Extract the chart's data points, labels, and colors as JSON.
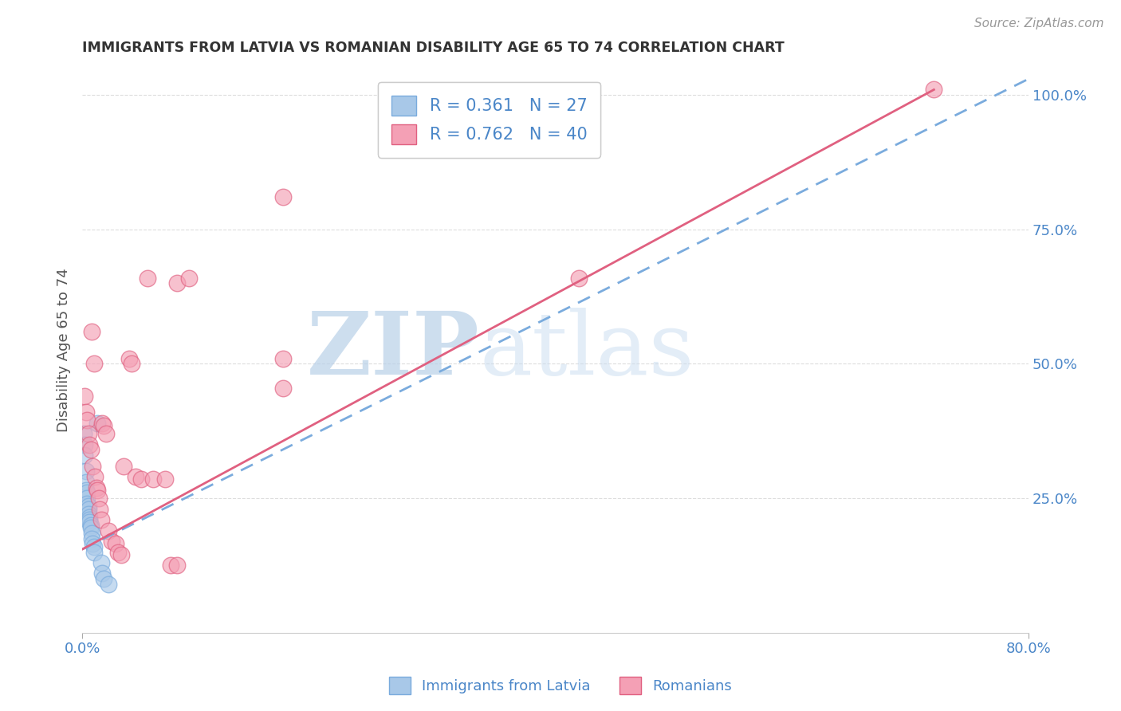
{
  "title": "IMMIGRANTS FROM LATVIA VS ROMANIAN DISABILITY AGE 65 TO 74 CORRELATION CHART",
  "source": "Source: ZipAtlas.com",
  "ylabel": "Disability Age 65 to 74",
  "xlim": [
    0.0,
    0.8
  ],
  "ylim": [
    0.0,
    1.05
  ],
  "legend_entries": [
    {
      "label": "R = 0.361   N = 27",
      "color": "#a8c4e0"
    },
    {
      "label": "R = 0.762   N = 40",
      "color": "#f4a0b0"
    }
  ],
  "legend_bottom": [
    "Immigrants from Latvia",
    "Romanians"
  ],
  "watermark_zip": "ZIP",
  "watermark_atlas": "atlas",
  "latvia_scatter": [
    [
      0.001,
      0.37
    ],
    [
      0.002,
      0.35
    ],
    [
      0.002,
      0.33
    ],
    [
      0.003,
      0.3
    ],
    [
      0.003,
      0.28
    ],
    [
      0.003,
      0.265
    ],
    [
      0.004,
      0.26
    ],
    [
      0.004,
      0.25
    ],
    [
      0.004,
      0.24
    ],
    [
      0.005,
      0.235
    ],
    [
      0.005,
      0.23
    ],
    [
      0.005,
      0.22
    ],
    [
      0.006,
      0.215
    ],
    [
      0.006,
      0.21
    ],
    [
      0.006,
      0.205
    ],
    [
      0.007,
      0.2
    ],
    [
      0.007,
      0.195
    ],
    [
      0.008,
      0.185
    ],
    [
      0.008,
      0.175
    ],
    [
      0.009,
      0.165
    ],
    [
      0.01,
      0.16
    ],
    [
      0.01,
      0.15
    ],
    [
      0.013,
      0.39
    ],
    [
      0.016,
      0.13
    ],
    [
      0.017,
      0.11
    ],
    [
      0.018,
      0.1
    ],
    [
      0.022,
      0.09
    ]
  ],
  "romanian_scatter": [
    [
      0.002,
      0.44
    ],
    [
      0.003,
      0.41
    ],
    [
      0.004,
      0.395
    ],
    [
      0.005,
      0.37
    ],
    [
      0.006,
      0.35
    ],
    [
      0.007,
      0.34
    ],
    [
      0.008,
      0.56
    ],
    [
      0.009,
      0.31
    ],
    [
      0.01,
      0.5
    ],
    [
      0.011,
      0.29
    ],
    [
      0.012,
      0.27
    ],
    [
      0.013,
      0.265
    ],
    [
      0.014,
      0.25
    ],
    [
      0.015,
      0.23
    ],
    [
      0.016,
      0.21
    ],
    [
      0.017,
      0.39
    ],
    [
      0.018,
      0.385
    ],
    [
      0.02,
      0.37
    ],
    [
      0.022,
      0.19
    ],
    [
      0.025,
      0.17
    ],
    [
      0.028,
      0.165
    ],
    [
      0.03,
      0.15
    ],
    [
      0.033,
      0.145
    ],
    [
      0.035,
      0.31
    ],
    [
      0.04,
      0.51
    ],
    [
      0.042,
      0.5
    ],
    [
      0.045,
      0.29
    ],
    [
      0.05,
      0.285
    ],
    [
      0.055,
      0.66
    ],
    [
      0.06,
      0.285
    ],
    [
      0.07,
      0.285
    ],
    [
      0.075,
      0.125
    ],
    [
      0.08,
      0.65
    ],
    [
      0.08,
      0.125
    ],
    [
      0.09,
      0.66
    ],
    [
      0.17,
      0.81
    ],
    [
      0.17,
      0.51
    ],
    [
      0.17,
      0.455
    ],
    [
      0.42,
      0.66
    ],
    [
      0.72,
      1.01
    ]
  ],
  "latvia_line": [
    [
      0.0,
      0.155
    ],
    [
      0.8,
      1.03
    ]
  ],
  "romanian_line": [
    [
      0.0,
      0.155
    ],
    [
      0.72,
      1.01
    ]
  ],
  "latvia_line_color": "#7aabdd",
  "romanian_line_color": "#e06080",
  "scatter_blue": "#a8c8e8",
  "scatter_pink": "#f4a0b5",
  "grid_color": "#dddddd",
  "title_color": "#333333",
  "axis_label_color": "#4a86c8",
  "background_color": "#ffffff"
}
